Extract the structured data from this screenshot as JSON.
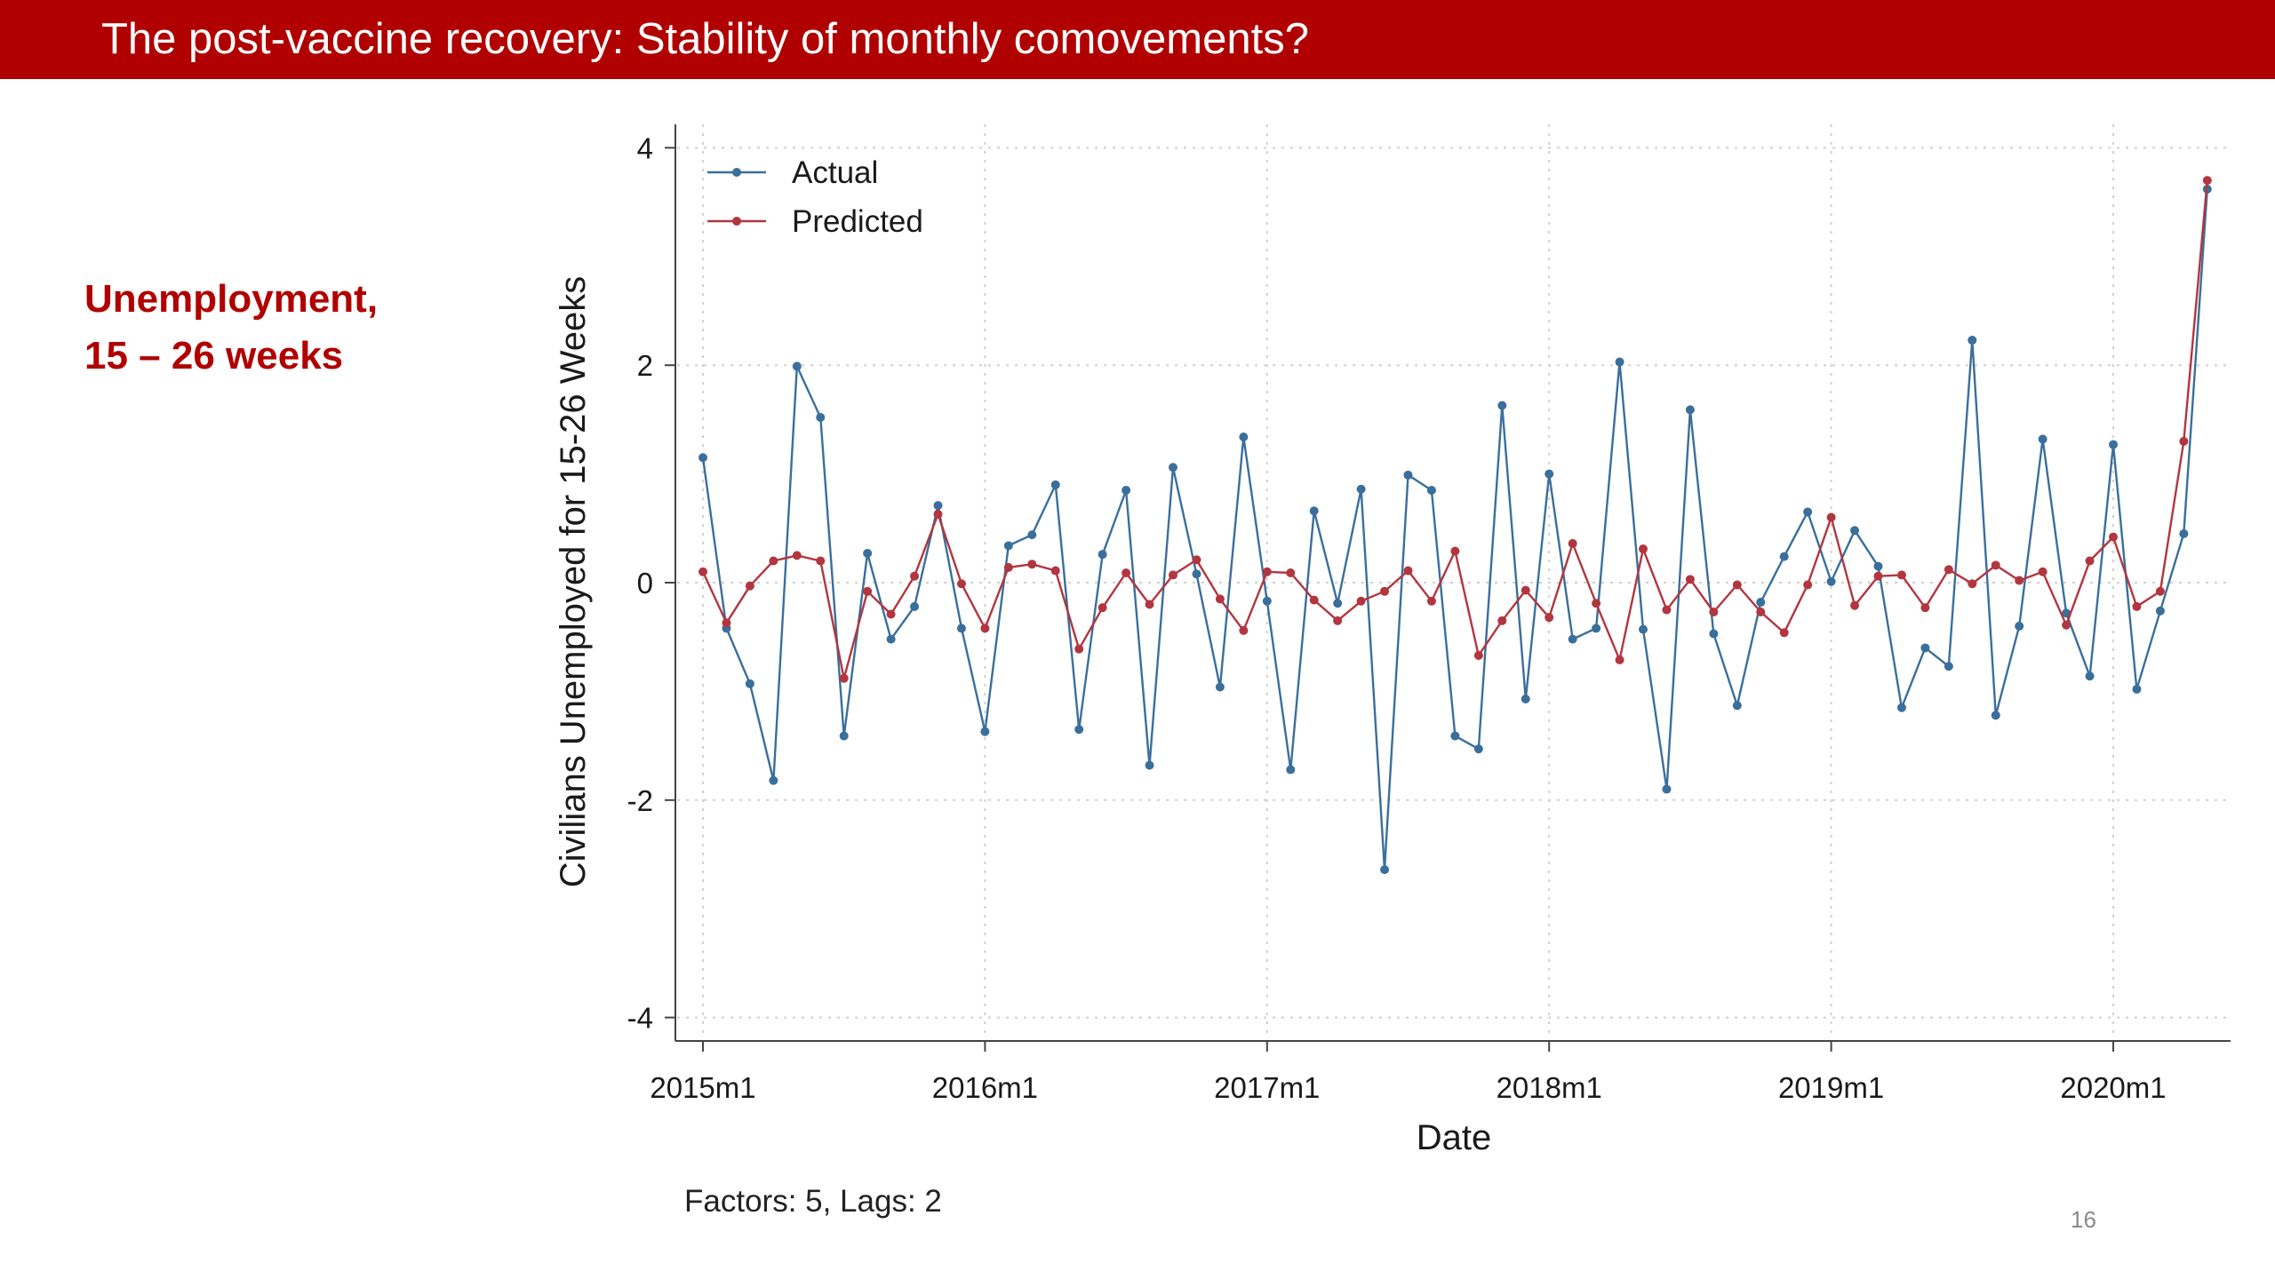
{
  "slide": {
    "title": "The post-vaccine recovery: Stability of monthly comovements?",
    "side_label_line1": "Unemployment,",
    "side_label_line2": "15 – 26 weeks",
    "footnote": "Factors: 5, Lags: 2",
    "page_number": "16"
  },
  "colors": {
    "title_bar": "#b00000",
    "side_label": "#b00000",
    "actual": "#3a6f9c",
    "predicted": "#b2363f"
  },
  "chart_data": {
    "type": "line",
    "xlabel": "Date",
    "ylabel": "Civilians Unemployed for 15-26 Weeks",
    "x_start": "2015m1",
    "x_end": "2020m5",
    "ylim": [
      -4,
      4
    ],
    "yticks": [
      -4,
      -2,
      0,
      2,
      4
    ],
    "xticks": [
      {
        "label": "2015m1",
        "index": 0
      },
      {
        "label": "2016m1",
        "index": 12
      },
      {
        "label": "2017m1",
        "index": 24
      },
      {
        "label": "2018m1",
        "index": 36
      },
      {
        "label": "2019m1",
        "index": 48
      },
      {
        "label": "2020m1",
        "index": 60
      }
    ],
    "grid": true,
    "legend_position": "top-left",
    "series": [
      {
        "name": "Actual",
        "values": [
          1.15,
          -0.42,
          -0.93,
          -1.82,
          1.99,
          1.52,
          -1.41,
          0.27,
          -0.52,
          -0.22,
          0.71,
          -0.42,
          -1.37,
          0.34,
          0.44,
          0.9,
          -1.35,
          0.26,
          0.85,
          -1.68,
          1.06,
          0.08,
          -0.96,
          1.34,
          -0.17,
          -1.72,
          0.66,
          -0.19,
          0.86,
          -2.64,
          0.99,
          0.85,
          -1.41,
          -1.53,
          1.63,
          -1.07,
          1.0,
          -0.52,
          -0.42,
          2.03,
          -0.43,
          -1.9,
          1.59,
          -0.47,
          -1.13,
          -0.18,
          0.24,
          0.65,
          0.01,
          0.48,
          0.15,
          -1.15,
          -0.6,
          -0.77,
          2.23,
          -1.22,
          -0.4,
          1.32,
          -0.28,
          -0.86,
          1.27,
          -0.98,
          -0.26,
          0.45,
          3.62
        ]
      },
      {
        "name": "Predicted",
        "values": [
          0.1,
          -0.37,
          -0.03,
          0.2,
          0.25,
          0.2,
          -0.88,
          -0.08,
          -0.29,
          0.06,
          0.63,
          -0.01,
          -0.42,
          0.14,
          0.17,
          0.11,
          -0.61,
          -0.23,
          0.09,
          -0.2,
          0.07,
          0.21,
          -0.15,
          -0.44,
          0.1,
          0.09,
          -0.16,
          -0.35,
          -0.17,
          -0.08,
          0.11,
          -0.17,
          0.29,
          -0.67,
          -0.35,
          -0.07,
          -0.32,
          0.36,
          -0.19,
          -0.71,
          0.31,
          -0.25,
          0.03,
          -0.27,
          -0.02,
          -0.27,
          -0.46,
          -0.02,
          0.6,
          -0.21,
          0.06,
          0.07,
          -0.23,
          0.12,
          -0.01,
          0.16,
          0.02,
          0.1,
          -0.39,
          0.2,
          0.42,
          -0.22,
          -0.08,
          1.3,
          3.7
        ]
      }
    ]
  }
}
